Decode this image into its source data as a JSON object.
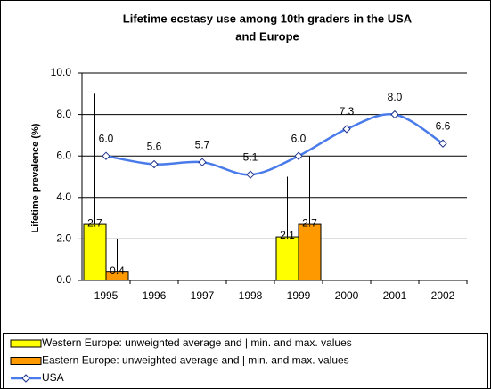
{
  "chart_data": {
    "type": "bar",
    "title": [
      "Lifetime ecstasy use among 10th graders in the USA",
      "and Europe"
    ],
    "y_label": "Lifetime prevalence (%)",
    "categories": [
      "1995",
      "1996",
      "1997",
      "1998",
      "1999",
      "2000",
      "2001",
      "2002"
    ],
    "ylim": [
      0,
      10
    ],
    "yticks": [
      {
        "value": 0,
        "label": "0.0"
      },
      {
        "value": 2,
        "label": "2.0"
      },
      {
        "value": 4,
        "label": "4.0"
      },
      {
        "value": 6,
        "label": "6.0"
      },
      {
        "value": 8,
        "label": "8.0"
      },
      {
        "value": 10,
        "label": "10.0"
      }
    ],
    "grid": true,
    "series": [
      {
        "name": "Western Europe: unweighted average and  | min. and max. values",
        "type": "bar",
        "color": "#ffff00",
        "values": [
          2.7,
          null,
          null,
          null,
          2.1,
          null,
          null,
          null
        ],
        "value_labels": [
          "2.7",
          null,
          null,
          null,
          "2.1",
          null,
          null,
          null
        ],
        "max": [
          9.0,
          null,
          null,
          null,
          5.0,
          null,
          null,
          null
        ]
      },
      {
        "name": "Eastern Europe: unweighted average and  | min. and max. values",
        "type": "bar",
        "color": "#ff9900",
        "values": [
          0.4,
          null,
          null,
          null,
          2.7,
          null,
          null,
          null
        ],
        "value_labels": [
          "0.4",
          null,
          null,
          null,
          "2.7",
          null,
          null,
          null
        ],
        "max": [
          2.0,
          null,
          null,
          null,
          6.0,
          null,
          null,
          null
        ]
      },
      {
        "name": "USA",
        "type": "line",
        "color": "#4a7bea",
        "values": [
          6.0,
          5.6,
          5.7,
          5.1,
          6.0,
          7.3,
          8.0,
          6.6
        ],
        "value_labels": [
          "6.0",
          "5.6",
          "5.7",
          "5.1",
          "6.0",
          "7.3",
          "8.0",
          "6.6"
        ]
      }
    ]
  }
}
